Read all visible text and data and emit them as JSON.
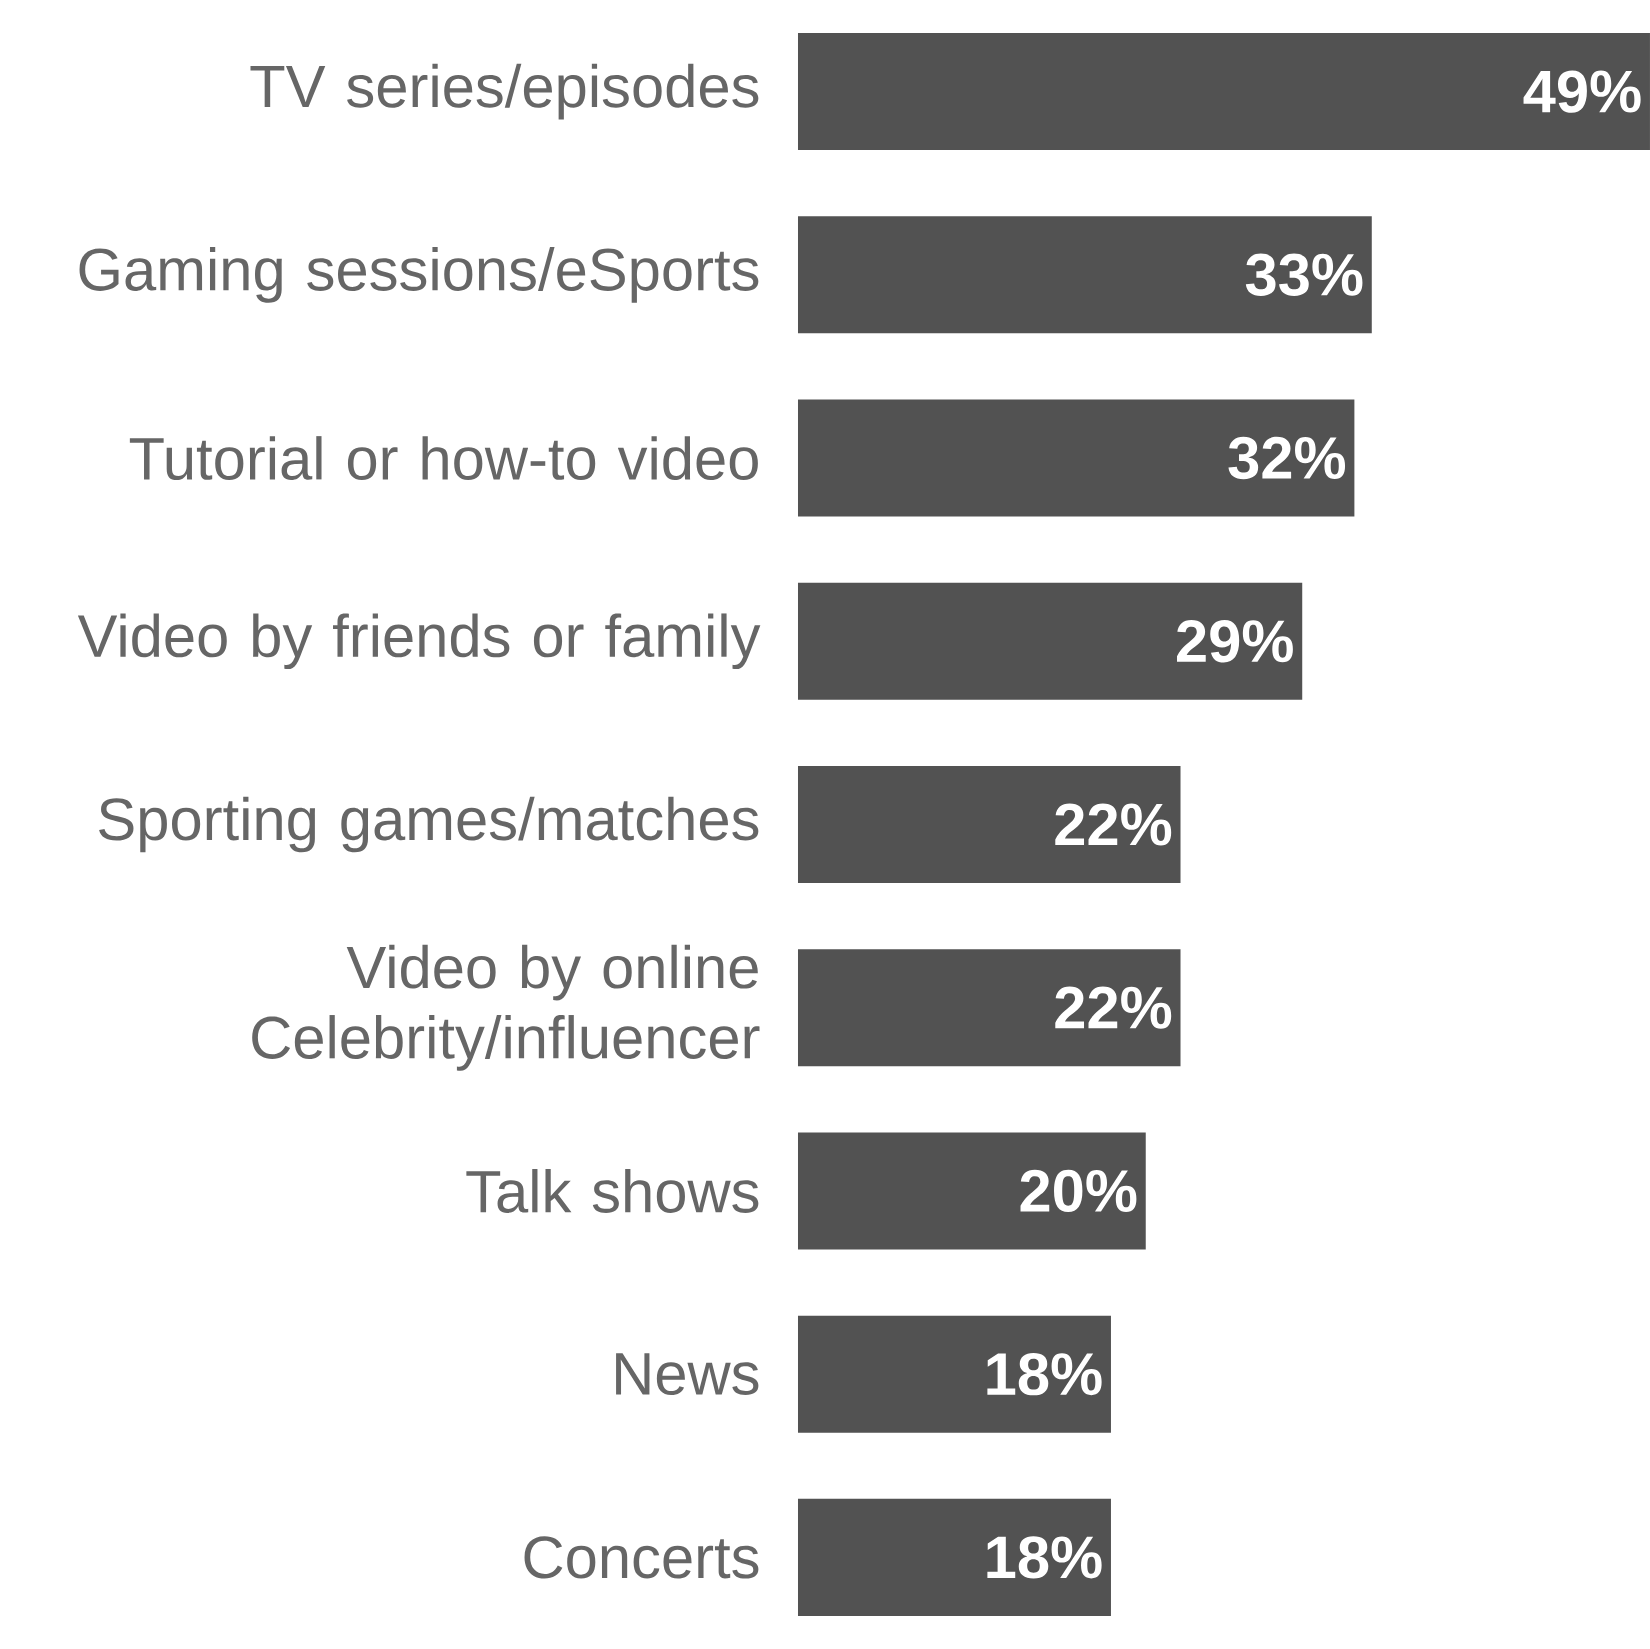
{
  "chart_data": {
    "type": "bar",
    "orientation": "horizontal",
    "categories": [
      "TV series/episodes",
      "Gaming sessions/eSports",
      "Tutorial or how-to video",
      "Video by friends or family",
      "Sporting games/matches",
      "Video by online Celebrity/influencer",
      "Talk shows",
      "News",
      "Concerts"
    ],
    "values": [
      49,
      33,
      32,
      29,
      22,
      22,
      20,
      18,
      18
    ],
    "value_labels": [
      "49%",
      "33%",
      "32%",
      "29%",
      "22%",
      "22%",
      "20%",
      "18%",
      "18%"
    ],
    "color": "#525252"
  }
}
